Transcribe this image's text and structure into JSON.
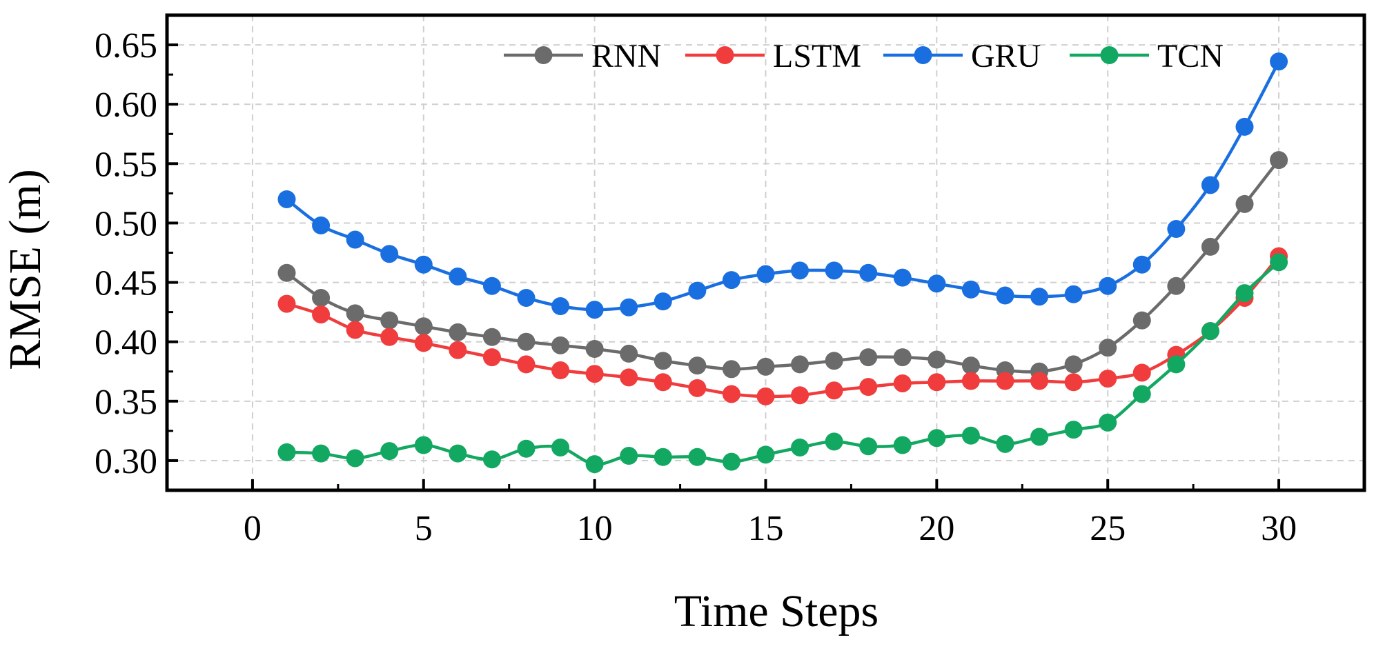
{
  "chart_data": {
    "type": "line",
    "title": "",
    "xlabel": "Time Steps",
    "ylabel": "RMSE (m)",
    "xlim": [
      -2.5,
      32.5
    ],
    "ylim": [
      0.275,
      0.675
    ],
    "xticks": [
      0,
      5,
      10,
      15,
      20,
      25,
      30
    ],
    "xtick_labels": [
      "0",
      "5",
      "10",
      "15",
      "20",
      "25",
      "30"
    ],
    "yticks": [
      0.3,
      0.35,
      0.4,
      0.45,
      0.5,
      0.55,
      0.6,
      0.65
    ],
    "ytick_labels": [
      "0.30",
      "0.35",
      "0.40",
      "0.45",
      "0.50",
      "0.55",
      "0.60",
      "0.65"
    ],
    "grid": true,
    "legend_position": "top-right",
    "x": [
      1,
      2,
      3,
      4,
      5,
      6,
      7,
      8,
      9,
      10,
      11,
      12,
      13,
      14,
      15,
      16,
      17,
      18,
      19,
      20,
      21,
      22,
      23,
      24,
      25,
      26,
      27,
      28,
      29,
      30
    ],
    "series": [
      {
        "name": "RNN",
        "color": "#6b6b6b",
        "values": [
          0.458,
          0.437,
          0.424,
          0.418,
          0.413,
          0.408,
          0.404,
          0.4,
          0.397,
          0.394,
          0.39,
          0.384,
          0.38,
          0.377,
          0.379,
          0.381,
          0.384,
          0.387,
          0.387,
          0.385,
          0.38,
          0.376,
          0.375,
          0.381,
          0.395,
          0.418,
          0.447,
          0.48,
          0.516,
          0.553
        ]
      },
      {
        "name": "LSTM",
        "color": "#f03c3c",
        "values": [
          0.432,
          0.423,
          0.41,
          0.404,
          0.399,
          0.393,
          0.387,
          0.381,
          0.376,
          0.373,
          0.37,
          0.366,
          0.361,
          0.356,
          0.354,
          0.355,
          0.359,
          0.362,
          0.365,
          0.366,
          0.367,
          0.367,
          0.367,
          0.366,
          0.369,
          0.374,
          0.389,
          0.409,
          0.437,
          0.472
        ]
      },
      {
        "name": "GRU",
        "color": "#1a6fe0",
        "values": [
          0.52,
          0.498,
          0.486,
          0.474,
          0.465,
          0.455,
          0.447,
          0.437,
          0.43,
          0.427,
          0.429,
          0.434,
          0.443,
          0.452,
          0.457,
          0.46,
          0.46,
          0.458,
          0.454,
          0.449,
          0.444,
          0.439,
          0.438,
          0.44,
          0.447,
          0.465,
          0.495,
          0.532,
          0.581,
          0.636
        ]
      },
      {
        "name": "TCN",
        "color": "#13a861",
        "values": [
          0.307,
          0.306,
          0.302,
          0.308,
          0.313,
          0.306,
          0.301,
          0.31,
          0.311,
          0.297,
          0.304,
          0.303,
          0.303,
          0.299,
          0.305,
          0.311,
          0.316,
          0.312,
          0.313,
          0.319,
          0.321,
          0.314,
          0.32,
          0.326,
          0.332,
          0.356,
          0.381,
          0.409,
          0.441,
          0.467
        ]
      }
    ]
  }
}
